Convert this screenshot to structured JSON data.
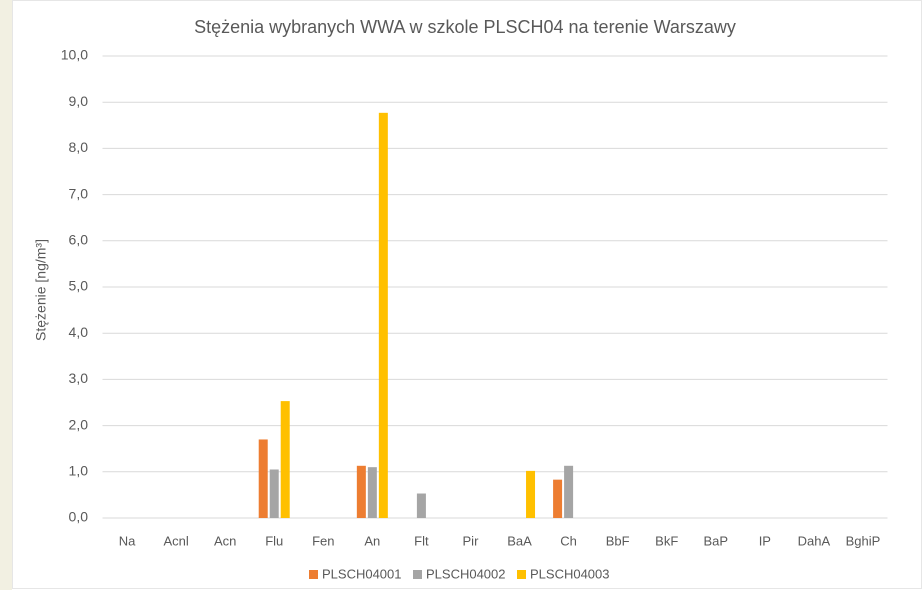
{
  "chart_data": {
    "type": "bar",
    "title": "Stężenia wybranych WWA w szkole PLSCH04 na terenie Warszawy",
    "y_label": "Stężenie [ng/m³]",
    "categories": [
      "Na",
      "Acnl",
      "Acn",
      "Flu",
      "Fen",
      "An",
      "Flt",
      "Pir",
      "BaA",
      "Ch",
      "BbF",
      "BkF",
      "BaP",
      "IP",
      "DahA",
      "BghiP"
    ],
    "series": [
      {
        "name": "PLSCH04001",
        "color": "#ed7d31",
        "values": [
          null,
          null,
          null,
          1.7,
          null,
          1.13,
          null,
          null,
          null,
          0.83,
          null,
          null,
          null,
          null,
          null,
          null
        ]
      },
      {
        "name": "PLSCH04002",
        "color": "#a5a5a5",
        "values": [
          null,
          null,
          null,
          1.05,
          null,
          1.1,
          0.53,
          null,
          null,
          1.13,
          null,
          null,
          null,
          null,
          null,
          null
        ]
      },
      {
        "name": "PLSCH04003",
        "color": "#ffc000",
        "values": [
          null,
          null,
          null,
          2.53,
          null,
          8.77,
          null,
          null,
          1.02,
          null,
          null,
          null,
          null,
          null,
          null,
          null
        ]
      }
    ],
    "ylim": [
      0,
      10
    ],
    "yticks": [
      {
        "value": 0,
        "label": "0,0"
      },
      {
        "value": 1,
        "label": "1,0"
      },
      {
        "value": 2,
        "label": "2,0"
      },
      {
        "value": 3,
        "label": "3,0"
      },
      {
        "value": 4,
        "label": "4,0"
      },
      {
        "value": 5,
        "label": "5,0"
      },
      {
        "value": 6,
        "label": "6,0"
      },
      {
        "value": 7,
        "label": "7,0"
      },
      {
        "value": 8,
        "label": "8,0"
      },
      {
        "value": 9,
        "label": "9,0"
      },
      {
        "value": 10,
        "label": "10,0"
      }
    ],
    "grid": true,
    "legend": "bottom"
  }
}
